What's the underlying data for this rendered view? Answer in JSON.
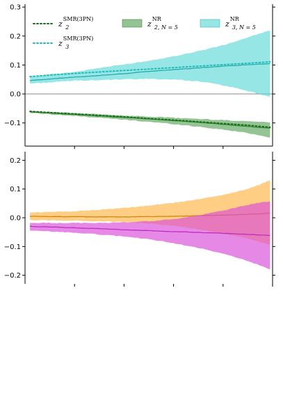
{
  "chart_data": [
    {
      "type": "line",
      "panel": "top",
      "ylim": [
        -0.18,
        0.31
      ],
      "yticks": [
        -0.1,
        0.0,
        0.1,
        0.2,
        0.3
      ],
      "ytick_labels": [
        "−0.1",
        "0.0",
        "0.1",
        "0.2",
        "0.3"
      ],
      "xlim": [
        0,
        1
      ],
      "xticks": [
        0.2,
        0.4,
        0.6,
        0.8
      ],
      "xtick_labels": [
        "",
        "",
        "",
        ""
      ],
      "x": [
        0.02,
        0.1,
        0.2,
        0.3,
        0.4,
        0.5,
        0.6,
        0.7,
        0.8,
        0.9,
        0.99
      ],
      "zero_line": true,
      "legend": {
        "placement": "top",
        "entries": [
          {
            "id": "z2_smr",
            "base": "z",
            "sub": "2",
            "sup": "SMR(3PN)",
            "style": "dotted",
            "color": "#1a6e1a"
          },
          {
            "id": "z3_smr",
            "base": "z",
            "sub": "3",
            "sup": "SMR(3PN)",
            "style": "dotted",
            "color": "#22bcbc"
          },
          {
            "id": "z2_nr",
            "base": "z",
            "sub": "2, N = 5",
            "sup": "NR",
            "style": "patch",
            "color": "#5aa55a"
          },
          {
            "id": "z3_nr",
            "base": "z",
            "sub": "3, N = 5",
            "sup": "NR",
            "style": "patch",
            "color": "#5fd8d8"
          }
        ]
      },
      "series": [
        {
          "name": "z3 NR band",
          "kind": "band",
          "color": "#5fd8d8",
          "opacity": 0.65,
          "median": [
            0.046,
            0.052,
            0.058,
            0.064,
            0.07,
            0.078,
            0.084,
            0.09,
            0.096,
            0.101,
            0.105
          ],
          "upper": [
            0.06,
            0.068,
            0.076,
            0.09,
            0.102,
            0.115,
            0.13,
            0.148,
            0.168,
            0.195,
            0.22
          ],
          "lower": [
            0.036,
            0.04,
            0.046,
            0.048,
            0.05,
            0.052,
            0.05,
            0.044,
            0.03,
            0.01,
            -0.01
          ]
        },
        {
          "name": "z2 NR band",
          "kind": "band",
          "color": "#5aa55a",
          "opacity": 0.65,
          "median": [
            -0.062,
            -0.066,
            -0.071,
            -0.076,
            -0.081,
            -0.086,
            -0.092,
            -0.098,
            -0.105,
            -0.112,
            -0.118
          ],
          "upper": [
            -0.059,
            -0.062,
            -0.066,
            -0.07,
            -0.074,
            -0.078,
            -0.082,
            -0.086,
            -0.09,
            -0.094,
            -0.098
          ],
          "lower": [
            -0.065,
            -0.07,
            -0.076,
            -0.082,
            -0.089,
            -0.096,
            -0.104,
            -0.113,
            -0.123,
            -0.135,
            -0.15
          ]
        },
        {
          "name": "z3 SMR(3PN)",
          "kind": "dotted",
          "color": "#22bcbc",
          "values": [
            0.06,
            0.065,
            0.071,
            0.076,
            0.081,
            0.086,
            0.091,
            0.096,
            0.101,
            0.106,
            0.111
          ]
        },
        {
          "name": "z2 SMR(3PN)",
          "kind": "dotted",
          "color": "#1a6e1a",
          "values": [
            -0.06,
            -0.064,
            -0.069,
            -0.074,
            -0.079,
            -0.085,
            -0.09,
            -0.096,
            -0.102,
            -0.108,
            -0.115
          ]
        }
      ]
    },
    {
      "type": "line",
      "panel": "bottom",
      "ylim": [
        -0.23,
        0.23
      ],
      "yticks": [
        -0.2,
        -0.1,
        0.0,
        0.1,
        0.2
      ],
      "ytick_labels": [
        "−0.2",
        "−0.1",
        "0.0",
        "0.1",
        "0.2"
      ],
      "xlim": [
        0,
        1
      ],
      "xticks": [
        0.2,
        0.4,
        0.6,
        0.8,
        1.0
      ],
      "xtick_labels": [
        "",
        "",
        "",
        "",
        ""
      ],
      "x": [
        0.02,
        0.1,
        0.2,
        0.3,
        0.4,
        0.5,
        0.6,
        0.7,
        0.8,
        0.9,
        0.99
      ],
      "series": [
        {
          "name": "orange band",
          "kind": "band",
          "color": "#ffb444",
          "opacity": 0.65,
          "median": [
            0.005,
            0.004,
            0.004,
            0.003,
            0.003,
            0.004,
            0.005,
            0.007,
            0.009,
            0.012,
            0.016
          ],
          "upper": [
            0.018,
            0.02,
            0.023,
            0.028,
            0.034,
            0.042,
            0.052,
            0.064,
            0.08,
            0.1,
            0.13
          ],
          "lower": [
            -0.008,
            -0.009,
            -0.01,
            -0.012,
            -0.015,
            -0.02,
            -0.028,
            -0.04,
            -0.055,
            -0.072,
            -0.095
          ]
        },
        {
          "name": "magenta band",
          "kind": "band",
          "color": "#d84ad8",
          "opacity": 0.65,
          "median": [
            -0.03,
            -0.032,
            -0.035,
            -0.038,
            -0.042,
            -0.045,
            -0.048,
            -0.051,
            -0.054,
            -0.058,
            -0.062
          ],
          "upper": [
            -0.018,
            -0.018,
            -0.018,
            -0.018,
            -0.016,
            -0.012,
            -0.005,
            0.008,
            0.025,
            0.045,
            0.058
          ],
          "lower": [
            -0.045,
            -0.048,
            -0.052,
            -0.058,
            -0.065,
            -0.075,
            -0.088,
            -0.105,
            -0.125,
            -0.15,
            -0.18
          ]
        }
      ]
    }
  ]
}
